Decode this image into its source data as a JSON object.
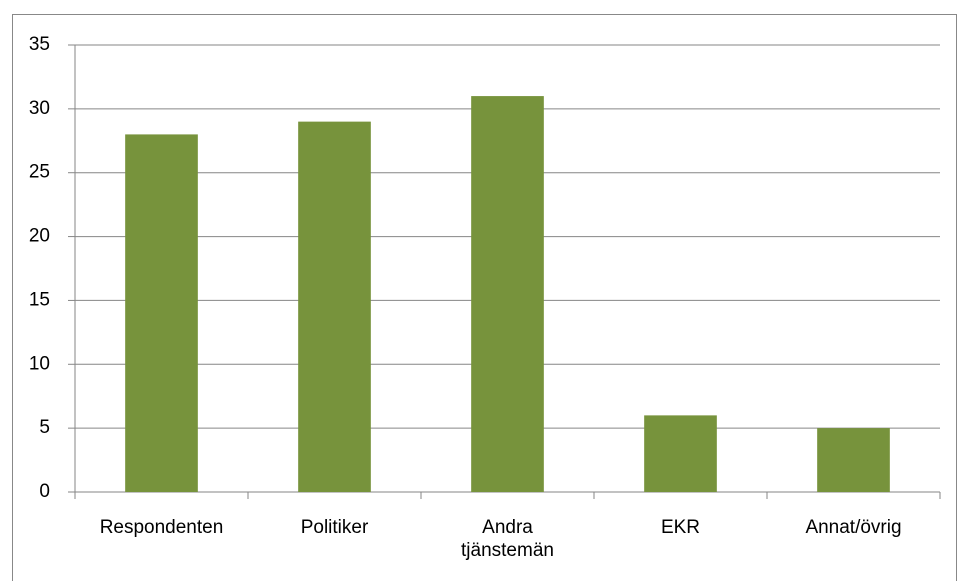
{
  "chart_data": {
    "type": "bar",
    "categories": [
      "Respondenten",
      "Politiker",
      "Andra tjänstemän",
      "EKR",
      "Annat/övrig"
    ],
    "values": [
      28,
      29,
      31,
      6,
      5
    ],
    "color": "#77933c",
    "ylim": [
      0,
      35
    ],
    "yticks": [
      0,
      5,
      10,
      15,
      20,
      25,
      30,
      35
    ],
    "grid": true
  }
}
